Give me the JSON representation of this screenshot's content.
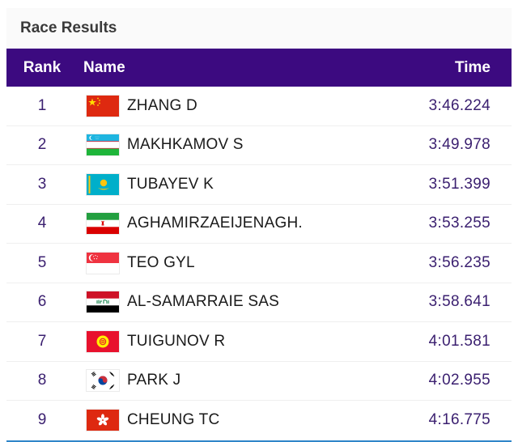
{
  "card": {
    "title": "Race Results"
  },
  "header": {
    "rank": "Rank",
    "name": "Name",
    "time": "Time"
  },
  "colors": {
    "header_bg": "#3c0a80",
    "accent_text": "#3b2070",
    "bottom_rule": "#2f86c9"
  },
  "rows": [
    {
      "rank": "1",
      "flag_icon": "china-flag-icon",
      "name": "ZHANG D",
      "time": "3:46.224"
    },
    {
      "rank": "2",
      "flag_icon": "uzbekistan-flag-icon",
      "name": "MAKHKAMOV S",
      "time": "3:49.978"
    },
    {
      "rank": "3",
      "flag_icon": "kazakhstan-flag-icon",
      "name": "TUBAYEV K",
      "time": "3:51.399"
    },
    {
      "rank": "4",
      "flag_icon": "iran-flag-icon",
      "name": "AGHAMIRZAEIJENAGH.",
      "time": "3:53.255"
    },
    {
      "rank": "5",
      "flag_icon": "singapore-flag-icon",
      "name": "TEO GYL",
      "time": "3:56.235"
    },
    {
      "rank": "6",
      "flag_icon": "iraq-flag-icon",
      "name": "AL-SAMARRAIE SAS",
      "time": "3:58.641"
    },
    {
      "rank": "7",
      "flag_icon": "kyrgyzstan-flag-icon",
      "name": "TUIGUNOV R",
      "time": "4:01.581"
    },
    {
      "rank": "8",
      "flag_icon": "south-korea-flag-icon",
      "name": "PARK J",
      "time": "4:02.955"
    },
    {
      "rank": "9",
      "flag_icon": "hong-kong-flag-icon",
      "name": "CHEUNG TC",
      "time": "4:16.775"
    }
  ]
}
